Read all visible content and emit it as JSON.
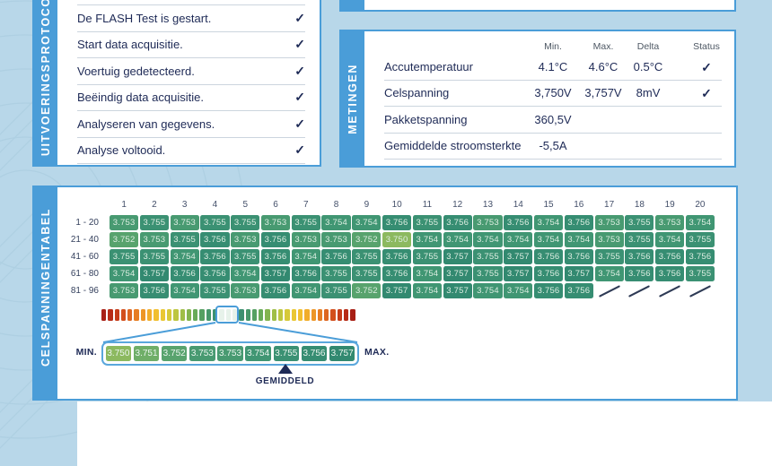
{
  "colors": {
    "accent_blue": "#4a9dd8",
    "navy": "#1e2a56",
    "background_blue": "#b8d7e9",
    "panel_white": "#ffffff",
    "header_gray": "#4e5864",
    "divider_gray": "#ccd5de",
    "cell_text": "#ddeee2",
    "highlight_segment": "#e7f2ea",
    "gradient_stops": [
      "#a81f15",
      "#bf3318",
      "#d4511c",
      "#e37422",
      "#ee9b28",
      "#f3bd2e",
      "#e8c934",
      "#c2c83e",
      "#95bb4a",
      "#6aab57",
      "#4c9b66",
      "#3c9070"
    ],
    "value_colors": {
      "3.750": "#8cb95f",
      "3.751": "#6fae68",
      "3.752": "#58a36d",
      "3.753": "#489a71",
      "3.754": "#409673",
      "3.755": "#3b9173",
      "3.756": "#368d72",
      "3.757": "#328970"
    }
  },
  "icons": {
    "check": "✓"
  },
  "protocol": {
    "title": "UITVOERINGSPROTOCOL",
    "items": [
      {
        "text": "De FLASH Test is gestart.",
        "checked": true
      },
      {
        "text": "Start data acquisitie.",
        "checked": true
      },
      {
        "text": "Voertuig gedetecteerd.",
        "checked": true
      },
      {
        "text": "Beëindig data acquisitie.",
        "checked": true
      },
      {
        "text": "Analyseren van gegevens.",
        "checked": true
      },
      {
        "text": "Analyse voltooid.",
        "checked": true
      }
    ]
  },
  "metingen": {
    "title": "METINGEN",
    "headers": [
      "Min.",
      "Max.",
      "Delta",
      "Status"
    ],
    "rows": [
      {
        "name": "Accutemperatuur",
        "min": "4.1°C",
        "max": "4.6°C",
        "delta": "0.5°C",
        "status": "✓"
      },
      {
        "name": "Celspanning",
        "min": "3,750V",
        "max": "3,757V",
        "delta": "8mV",
        "status": "✓"
      },
      {
        "name": "Pakketspanning",
        "min": "360,5V",
        "max": "",
        "delta": "",
        "status": ""
      },
      {
        "name": "Gemiddelde stroomsterkte",
        "min": "-5,5A",
        "max": "",
        "delta": "",
        "status": ""
      }
    ]
  },
  "cells": {
    "title": "CELSPANNINGENTABEL",
    "column_headers": [
      "1",
      "2",
      "3",
      "4",
      "5",
      "6",
      "7",
      "8",
      "9",
      "10",
      "11",
      "12",
      "13",
      "14",
      "15",
      "16",
      "17",
      "18",
      "19",
      "20"
    ],
    "rows": [
      {
        "label": "1 - 20",
        "values": [
          "3.753",
          "3.755",
          "3.753",
          "3.755",
          "3.755",
          "3.753",
          "3.755",
          "3.754",
          "3.754",
          "3.756",
          "3.755",
          "3.756",
          "3.753",
          "3.756",
          "3.754",
          "3.756",
          "3.753",
          "3.755",
          "3.753",
          "3.754"
        ],
        "empty_slashes": 0
      },
      {
        "label": "21 - 40",
        "values": [
          "3.752",
          "3.753",
          "3.755",
          "3.756",
          "3.753",
          "3.756",
          "3.753",
          "3.753",
          "3.752",
          "3.750",
          "3.754",
          "3.754",
          "3.754",
          "3.754",
          "3.754",
          "3.754",
          "3.753",
          "3.755",
          "3.754",
          "3.755"
        ],
        "empty_slashes": 0
      },
      {
        "label": "41 - 60",
        "values": [
          "3.755",
          "3.755",
          "3.754",
          "3.756",
          "3.755",
          "3.756",
          "3.754",
          "3.756",
          "3.755",
          "3.756",
          "3.755",
          "3.757",
          "3.755",
          "3.757",
          "3.756",
          "3.756",
          "3.755",
          "3.756",
          "3.756",
          "3.756"
        ],
        "empty_slashes": 0
      },
      {
        "label": "61 - 80",
        "values": [
          "3.754",
          "3.757",
          "3.756",
          "3.756",
          "3.754",
          "3.757",
          "3.756",
          "3.755",
          "3.755",
          "3.756",
          "3.754",
          "3.757",
          "3.755",
          "3.757",
          "3.756",
          "3.757",
          "3.754",
          "3.756",
          "3.756",
          "3.755"
        ],
        "empty_slashes": 0
      },
      {
        "label": "81 - 96",
        "values": [
          "3.753",
          "3.756",
          "3.754",
          "3.755",
          "3.753",
          "3.756",
          "3.754",
          "3.755",
          "3.752",
          "3.757",
          "3.754",
          "3.757",
          "3.754",
          "3.754",
          "3.756",
          "3.756"
        ],
        "empty_slashes": 4
      }
    ],
    "legend": {
      "min_label": "MIN.",
      "max_label": "MAX.",
      "zoom_values": [
        "3.750",
        "3.751",
        "3.752",
        "3.753",
        "3.753",
        "3.754",
        "3.755",
        "3.756",
        "3.757"
      ],
      "gemiddeld_label": "GEMIDDELD",
      "gemiddeld_cell_index": 6,
      "segments_total": 39,
      "highlight_segments": [
        18,
        19,
        20
      ]
    }
  }
}
